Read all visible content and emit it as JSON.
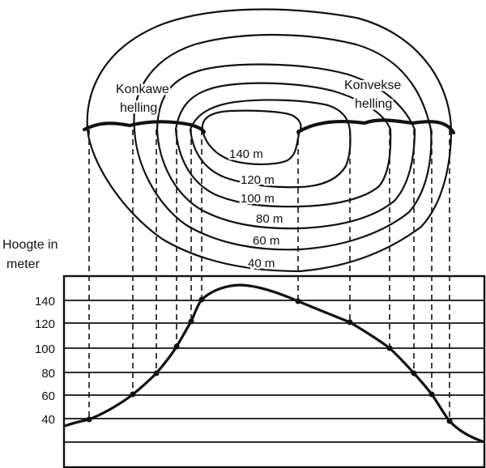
{
  "diagram": {
    "axis_title_line1": "Hoogte in",
    "axis_title_line2": "meter",
    "y_ticks": [
      "140",
      "120",
      "100",
      "80",
      "60",
      "40"
    ],
    "contour_labels": [
      "140 m",
      "120 m",
      "100 m",
      "80 m",
      "60 m",
      "40 m"
    ],
    "concave_label_line1": "Konkawe",
    "concave_label_line2": "helling",
    "convex_label_line1": "Konvekse",
    "convex_label_line2": "helling"
  }
}
